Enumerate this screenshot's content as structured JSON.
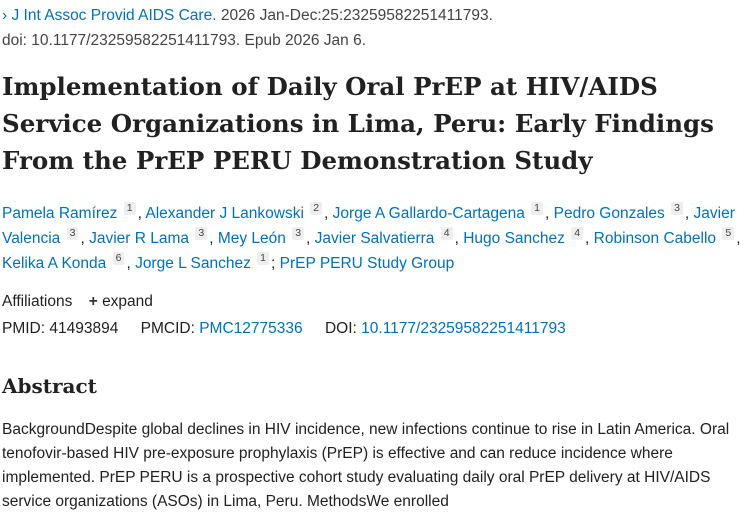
{
  "citation": {
    "chevron": "›",
    "journal": "J Int Assoc Provid AIDS Care.",
    "details": " 2026 Jan-Dec:25:23259582251411793.",
    "doi_line": "doi: 10.1177/23259582251411793. Epub 2026 Jan 6."
  },
  "title": "Implementation of Daily Oral PrEP at HIV/AIDS Service Organizations in Lima, Peru: Early Findings From the PrEP PERU Demonstration Study",
  "authors": [
    {
      "name": "Pamela Ramírez",
      "aff": "1",
      "sep": ", "
    },
    {
      "name": "Alexander J Lankowski",
      "aff": "2",
      "sep": ", "
    },
    {
      "name": "Jorge A Gallardo-Cartagena",
      "aff": "1",
      "sep": ", "
    },
    {
      "name": "Pedro Gonzales",
      "aff": "3",
      "sep": ", "
    },
    {
      "name": "Javier Valencia",
      "aff": "3",
      "sep": ", "
    },
    {
      "name": "Javier R Lama",
      "aff": "3",
      "sep": ", "
    },
    {
      "name": "Mey León",
      "aff": "3",
      "sep": ", "
    },
    {
      "name": "Javier Salvatierra",
      "aff": "4",
      "sep": ", "
    },
    {
      "name": "Hugo Sanchez",
      "aff": "4",
      "sep": ", "
    },
    {
      "name": "Robinson Cabello",
      "aff": "5",
      "sep": ", "
    },
    {
      "name": "Kelika A Konda",
      "aff": "6",
      "sep": ", "
    },
    {
      "name": "Jorge L Sanchez",
      "aff": "1",
      "sep": "; "
    }
  ],
  "group": "PrEP PERU Study Group",
  "affiliations": {
    "label": "Affiliations",
    "plus": "+",
    "expand": "expand"
  },
  "ids": {
    "pmid_label": "PMID:",
    "pmid": "41493894",
    "pmcid_label": "PMCID:",
    "pmcid": "PMC12775336",
    "doi_label": "DOI:",
    "doi": "10.1177/23259582251411793"
  },
  "abstract": {
    "heading": "Abstract",
    "text": "BackgroundDespite global declines in HIV incidence, new infections continue to rise in Latin America. Oral tenofovir-based HIV pre-exposure prophylaxis (PrEP) is effective and can reduce incidence where implemented. PrEP PERU is a prospective cohort study evaluating daily oral PrEP delivery at HIV/AIDS service organizations (ASOs) in Lima, Peru. MethodsWe enrolled"
  }
}
